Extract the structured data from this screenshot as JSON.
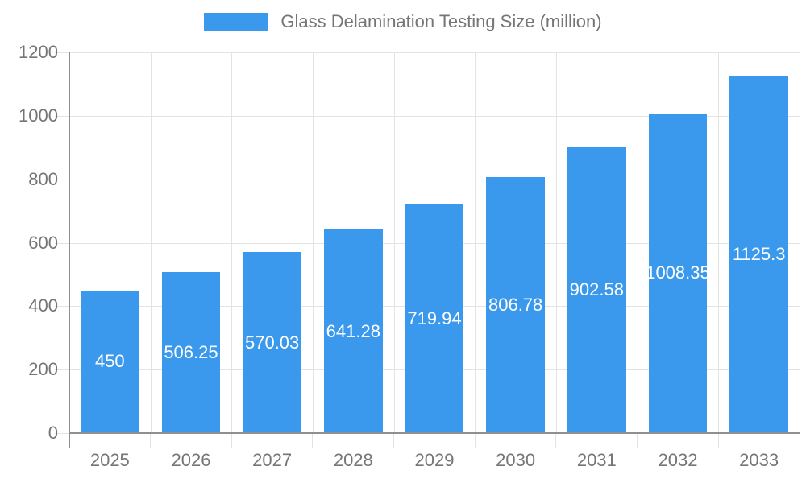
{
  "chart_data": {
    "type": "bar",
    "title": "Glass Delamination Testing Size (million)",
    "legend_entries": [
      "Glass Delamination Testing Size (million)"
    ],
    "legend_position": "top-center",
    "categories": [
      "2025",
      "2026",
      "2027",
      "2028",
      "2029",
      "2030",
      "2031",
      "2032",
      "2033"
    ],
    "values": [
      450,
      506.25,
      570.03,
      641.28,
      719.94,
      806.78,
      902.58,
      1008.35,
      1125.3
    ],
    "xlabel": "",
    "ylabel": "",
    "ylim": [
      0,
      1200
    ],
    "y_ticks": [
      0,
      200,
      400,
      600,
      800,
      1000,
      1200
    ],
    "grid": true,
    "value_labels_inside_bars": true,
    "colors": {
      "bar": "#3A99EC",
      "grid": "#e3e3e3",
      "axis_line": "#8f8f8f",
      "axis_text": "#757575",
      "value_label": "#ffffff",
      "background": "#ffffff"
    }
  }
}
